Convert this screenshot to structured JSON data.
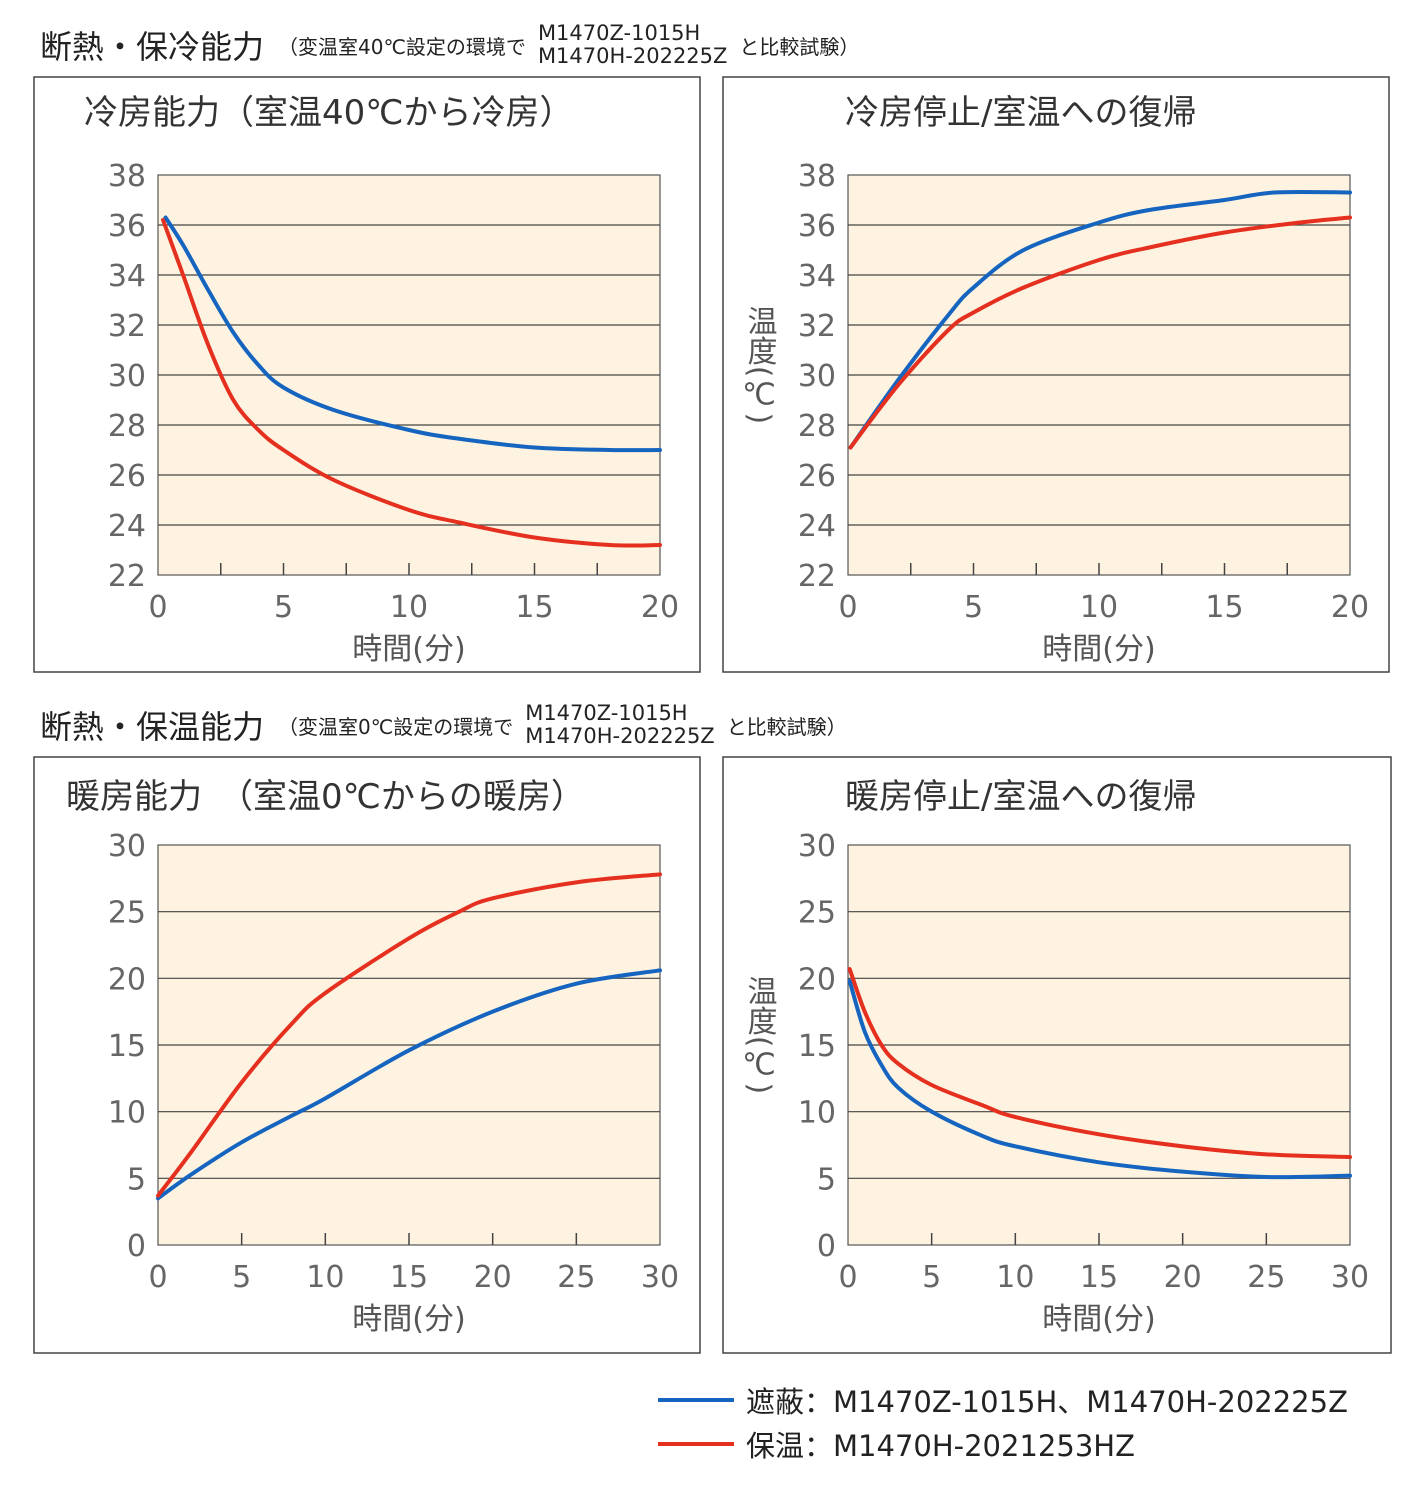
{
  "sections": [
    {
      "title": "断熱・保冷能力",
      "condition": "（変温室40℃設定の環境で",
      "models": [
        "M1470Z-1015H",
        "M1470H-202225Z"
      ],
      "tail": "と比較試験）"
    },
    {
      "title": "断熱・保温能力",
      "condition": "（変温室0℃設定の環境で",
      "models": [
        "M1470Z-1015H",
        "M1470H-202225Z"
      ],
      "tail": "と比較試験）"
    }
  ],
  "colors": {
    "shield": "#1565c0",
    "insulated": "#e53020",
    "plot_bg": "#fdf3e0"
  },
  "legend": [
    {
      "key": "shield",
      "name": "遮蔽",
      "models": "：M1470Z-1015H、M1470H-202225Z"
    },
    {
      "key": "insulated",
      "name": "保温",
      "models": "：M1470H-2021253HZ"
    }
  ],
  "chart_data": [
    {
      "type": "line",
      "title": "冷房能力（室温40℃から冷房）",
      "xlabel": "時間(分)",
      "ylabel": "",
      "xlim": [
        0,
        20
      ],
      "ylim": [
        22,
        38
      ],
      "xticks": [
        0,
        5,
        10,
        15,
        20
      ],
      "yticks": [
        22,
        24,
        26,
        28,
        30,
        32,
        34,
        36,
        38
      ],
      "grid": true,
      "series": [
        {
          "name": "遮蔽",
          "key": "shield",
          "x": [
            0.3,
            1,
            2,
            3,
            4,
            5,
            7,
            10,
            12,
            15,
            18,
            20
          ],
          "y": [
            36.3,
            35.2,
            33.4,
            31.7,
            30.4,
            29.5,
            28.6,
            27.8,
            27.45,
            27.1,
            27.0,
            27.0
          ]
        },
        {
          "name": "保温",
          "key": "insulated",
          "x": [
            0.2,
            1,
            2,
            3,
            4,
            5,
            7,
            10,
            12,
            15,
            18,
            20
          ],
          "y": [
            36.2,
            34.0,
            31.2,
            29.0,
            27.8,
            27.0,
            25.8,
            24.6,
            24.1,
            23.5,
            23.2,
            23.2
          ]
        }
      ]
    },
    {
      "type": "line",
      "title": "冷房停止/室温への復帰",
      "xlabel": "時間(分)",
      "ylabel": "温度(℃)",
      "xlim": [
        0,
        20
      ],
      "ylim": [
        22,
        38
      ],
      "xticks": [
        0,
        5,
        10,
        15,
        20
      ],
      "yticks": [
        22,
        24,
        26,
        28,
        30,
        32,
        34,
        36,
        38
      ],
      "grid": true,
      "series": [
        {
          "name": "遮蔽",
          "key": "shield",
          "x": [
            0.1,
            2,
            4,
            5,
            7,
            10,
            12,
            15,
            17,
            20
          ],
          "y": [
            27.1,
            29.8,
            32.4,
            33.5,
            35.0,
            36.1,
            36.6,
            37.0,
            37.3,
            37.3
          ]
        },
        {
          "name": "保温",
          "key": "insulated",
          "x": [
            0.1,
            2,
            4,
            5,
            7,
            10,
            12,
            15,
            18,
            20
          ],
          "y": [
            27.1,
            29.6,
            31.8,
            32.5,
            33.5,
            34.6,
            35.1,
            35.7,
            36.1,
            36.3
          ]
        }
      ]
    },
    {
      "type": "line",
      "title": "暖房能力　（室温0℃からの暖房）",
      "xlabel": "時間(分)",
      "ylabel": "",
      "xlim": [
        0,
        30
      ],
      "ylim": [
        0,
        30
      ],
      "xticks": [
        0,
        5,
        10,
        15,
        20,
        25,
        30
      ],
      "yticks": [
        0,
        5,
        10,
        15,
        20,
        25,
        30
      ],
      "grid": true,
      "series": [
        {
          "name": "遮蔽",
          "key": "shield",
          "x": [
            0,
            2,
            5,
            8,
            10,
            15,
            20,
            25,
            30
          ],
          "y": [
            3.5,
            5.3,
            7.7,
            9.7,
            11.0,
            14.6,
            17.5,
            19.6,
            20.6
          ]
        },
        {
          "name": "保温",
          "key": "insulated",
          "x": [
            0,
            2,
            5,
            8,
            10,
            15,
            18,
            20,
            25,
            30
          ],
          "y": [
            3.7,
            7.0,
            12.2,
            16.6,
            18.9,
            23.0,
            25.0,
            26.0,
            27.2,
            27.8
          ]
        }
      ]
    },
    {
      "type": "line",
      "title": "暖房停止/室温への復帰",
      "xlabel": "時間(分)",
      "ylabel": "温度(℃)",
      "xlim": [
        0,
        30
      ],
      "ylim": [
        0,
        30
      ],
      "xticks": [
        0,
        5,
        10,
        15,
        20,
        25,
        30
      ],
      "yticks": [
        0,
        5,
        10,
        15,
        20,
        25,
        30
      ],
      "grid": true,
      "series": [
        {
          "name": "遮蔽",
          "key": "shield",
          "x": [
            0.1,
            1,
            2,
            3,
            5,
            8,
            10,
            15,
            20,
            25,
            30
          ],
          "y": [
            19.8,
            16.0,
            13.5,
            11.8,
            10.0,
            8.2,
            7.4,
            6.2,
            5.5,
            5.1,
            5.2
          ]
        },
        {
          "name": "保温",
          "key": "insulated",
          "x": [
            0.1,
            1,
            2,
            3,
            5,
            8,
            10,
            15,
            20,
            25,
            30
          ],
          "y": [
            20.7,
            17.5,
            15.0,
            13.6,
            12.0,
            10.5,
            9.6,
            8.3,
            7.4,
            6.8,
            6.6
          ]
        }
      ]
    }
  ]
}
